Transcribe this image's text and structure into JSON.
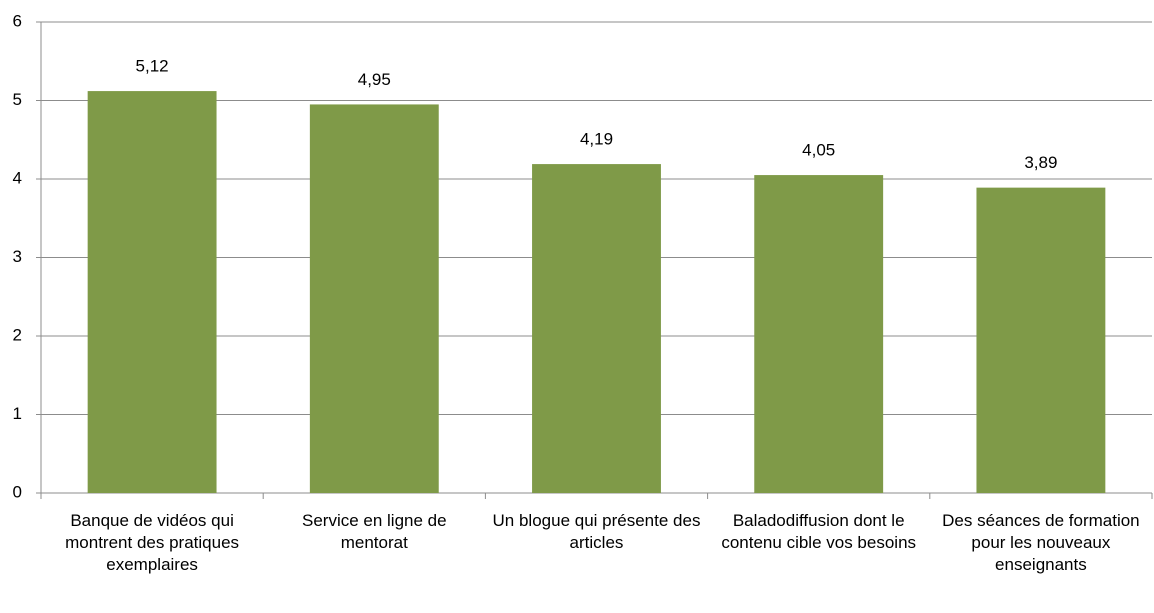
{
  "chart_data": {
    "type": "bar",
    "categories": [
      "Banque de vidéos qui montrent des pratiques exemplaires",
      "Service en ligne de mentorat",
      "Un blogue qui présente des articles",
      "Baladodiffusion dont le contenu cible vos besoins",
      "Des séances de formation pour les nouveaux enseignants"
    ],
    "values": [
      5.12,
      4.95,
      4.19,
      4.05,
      3.89
    ],
    "value_labels": [
      "5,12",
      "4,95",
      "4,19",
      "4,05",
      "3,89"
    ],
    "color": "#7f9a48",
    "ylim": [
      0,
      6
    ],
    "yticks": [
      0,
      1,
      2,
      3,
      4,
      5,
      6
    ],
    "grid": true
  }
}
